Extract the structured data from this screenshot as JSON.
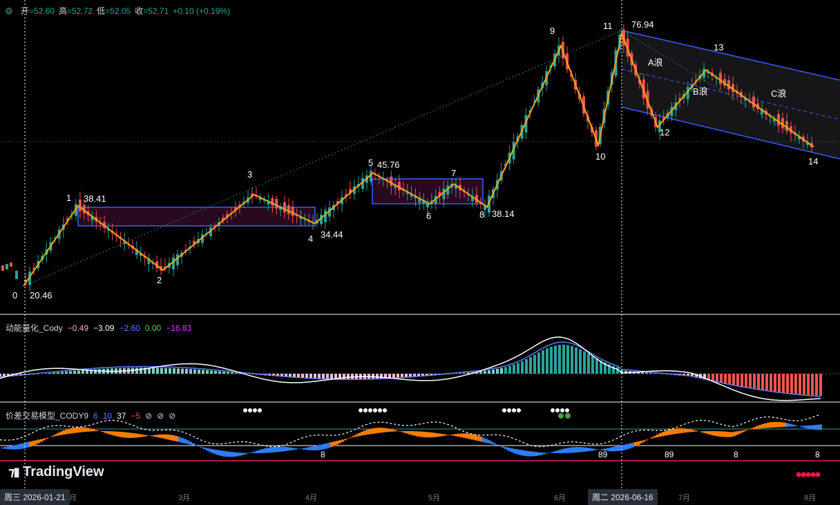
{
  "header": {
    "open_label": "开",
    "open": "=52.60",
    "high_label": "高",
    "high": "=52.72",
    "low_label": "低",
    "low": "=52.05",
    "close_label": "收",
    "close": "=52.71",
    "change": "+0.10 (+0.19%)"
  },
  "momentum_pane": {
    "name": "动能量化_Cody",
    "v1": "−0.49",
    "v2": "−3.09",
    "v3": "−2.60",
    "v4": "0.00",
    "v5": "−16.83"
  },
  "spread_pane": {
    "name": "价差交易模型_CODY9",
    "p1": "6",
    "p2": "10",
    "p3": "37",
    "p4": "−5",
    "p5": "⊘",
    "p6": "⊘",
    "p7": "⊘"
  },
  "brand": {
    "logo": "TradingView"
  },
  "time_axis": {
    "crosshair_left": "周三 2026-01-21",
    "crosshair_right": "周二 2026-06-16",
    "months": [
      "2月",
      "3月",
      "4月",
      "5月",
      "6月",
      "7月",
      "8月"
    ]
  },
  "chart_data": {
    "type": "candlestick",
    "annotation_kind": "wave pivots",
    "pivots": [
      {
        "label": "0",
        "price": 20.46,
        "price_label": "20.46"
      },
      {
        "label": "1",
        "price": 38.41,
        "price_label": "38.41"
      },
      {
        "label": "2",
        "price": 24.0,
        "price_label": ""
      },
      {
        "label": "3",
        "price": 40.9,
        "price_label": ""
      },
      {
        "label": "4",
        "price": 34.44,
        "price_label": "34.44"
      },
      {
        "label": "5",
        "price": 45.76,
        "price_label": "45.76"
      },
      {
        "label": "6",
        "price": 38.8,
        "price_label": ""
      },
      {
        "label": "7",
        "price": 43.3,
        "price_label": ""
      },
      {
        "label": "8",
        "price": 38.14,
        "price_label": "38.14"
      },
      {
        "label": "9",
        "price": 74.2,
        "price_label": ""
      },
      {
        "label": "10",
        "price": 52.0,
        "price_label": ""
      },
      {
        "label": "11",
        "price": 76.94,
        "price_label": "76.94"
      },
      {
        "label": "12",
        "price": 56.0,
        "price_label": ""
      },
      {
        "label": "13",
        "price": 68.8,
        "price_label": ""
      },
      {
        "label": "14",
        "price": 51.6,
        "price_label": ""
      }
    ],
    "wave_labels": [
      "A浪",
      "B浪",
      "C浪"
    ],
    "bottom_markers": [
      "8",
      "89",
      "89",
      "8",
      "8"
    ],
    "last_close": 52.71,
    "colors": {
      "up": "#26a69a",
      "down": "#ef5350",
      "zigzag": "#f7a21b",
      "channel": "#3d5afe"
    }
  }
}
